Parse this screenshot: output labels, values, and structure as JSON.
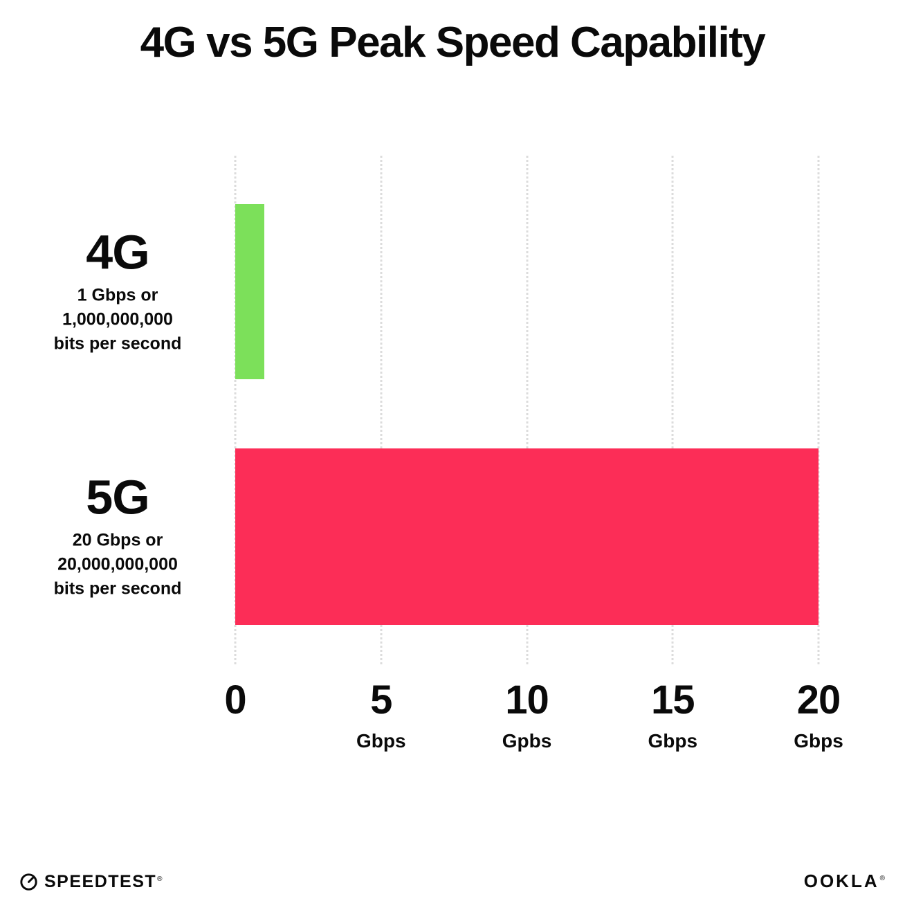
{
  "chart_data": {
    "type": "bar",
    "orientation": "horizontal",
    "title": "4G vs 5G Peak Speed Capability",
    "categories": [
      "4G",
      "5G"
    ],
    "values": [
      1,
      20
    ],
    "value_unit": "Gbps",
    "bar_colors": [
      "#7CE05A",
      "#FC2D57"
    ],
    "category_sublabels": [
      [
        "1 Gbps or",
        "1,000,000,000",
        "bits per second"
      ],
      [
        "20 Gbps or",
        "20,000,000,000",
        "bits per second"
      ]
    ],
    "xlim": [
      0,
      20
    ],
    "x_ticks": [
      {
        "value": 0,
        "label": "0",
        "unit": ""
      },
      {
        "value": 5,
        "label": "5",
        "unit": "Gbps"
      },
      {
        "value": 10,
        "label": "10",
        "unit": "Gpbs"
      },
      {
        "value": 15,
        "label": "15",
        "unit": "Gbps"
      },
      {
        "value": 20,
        "label": "20",
        "unit": "Gbps"
      }
    ],
    "grid": "vertical-dotted",
    "legend": "none"
  },
  "footer": {
    "speedtest_label": "SPEEDTEST",
    "speedtest_mark": "®",
    "ookla_label": "OOKLA",
    "ookla_mark": "®"
  },
  "colors": {
    "background": "#ffffff",
    "text": "#0a0a0a",
    "gridline": "#dcdcdc",
    "bar_4g": "#7CE05A",
    "bar_5g": "#FC2D57"
  }
}
